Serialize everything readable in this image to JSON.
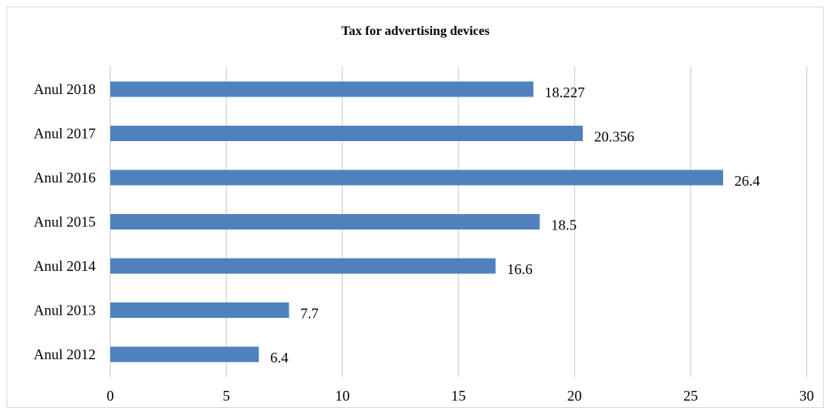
{
  "chart_data": {
    "type": "bar",
    "orientation": "horizontal",
    "title": "Tax for advertising devices",
    "categories": [
      "Anul 2018",
      "Anul 2017",
      "Anul 2016",
      "Anul 2015",
      "Anul 2014",
      "Anul 2013",
      "Anul 2012"
    ],
    "values": [
      18.227,
      20.356,
      26.4,
      18.5,
      16.6,
      7.7,
      6.4
    ],
    "data_labels": [
      "18.227",
      "20.356",
      "26.4",
      "18.5",
      "16.6",
      "7.7",
      "6.4"
    ],
    "xlim": [
      0,
      30
    ],
    "xticks": [
      0,
      5,
      10,
      15,
      20,
      25,
      30
    ],
    "xlabel": "",
    "ylabel": "",
    "grid": "vertical",
    "legend": "none",
    "bar_color": "#4f81bd",
    "grid_color": "#d9d9d9"
  }
}
